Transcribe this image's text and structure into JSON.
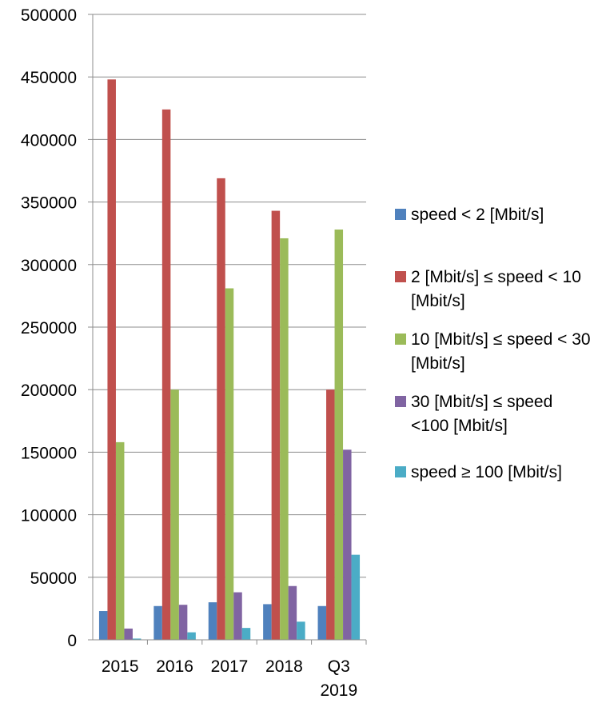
{
  "chart_data": {
    "type": "bar",
    "title": "",
    "xlabel": "",
    "ylabel": "",
    "ylim": [
      0,
      500000
    ],
    "yticks": [
      0,
      50000,
      100000,
      150000,
      200000,
      250000,
      300000,
      350000,
      400000,
      450000,
      500000
    ],
    "ytick_labels": [
      "0",
      "50000",
      "100000",
      "150000",
      "200000",
      "250000",
      "300000",
      "350000",
      "400000",
      "450000",
      "500000"
    ],
    "grid": true,
    "legend_position": "right",
    "categories": [
      "2015",
      "2016",
      "2017",
      "2018",
      "Q3 2019"
    ],
    "category_labels": [
      [
        "2015"
      ],
      [
        "2016"
      ],
      [
        "2017"
      ],
      [
        "2018"
      ],
      [
        "Q3",
        "2019"
      ]
    ],
    "series": [
      {
        "name": "speed <  2 [Mbit/s]",
        "color": "#4F81BD",
        "values": [
          23000,
          27000,
          30000,
          28500,
          27000
        ]
      },
      {
        "name": "2 [Mbit/s] ≤ speed < 10 [Mbit/s]",
        "color": "#C0504D",
        "values": [
          448000,
          424000,
          369000,
          343000,
          200000
        ]
      },
      {
        "name": "10 [Mbit/s] ≤ speed < 30 [Mbit/s]",
        "color": "#9BBB59",
        "values": [
          158000,
          200000,
          281000,
          321000,
          328000
        ]
      },
      {
        "name": "30 [Mbit/s] ≤  speed <100 [Mbit/s]",
        "color": "#8064A2",
        "values": [
          9000,
          28000,
          38000,
          43000,
          152000
        ]
      },
      {
        "name": "speed ≥ 100 [Mbit/s]",
        "color": "#4BACC6",
        "values": [
          1000,
          6000,
          9500,
          14500,
          68000
        ]
      }
    ]
  }
}
